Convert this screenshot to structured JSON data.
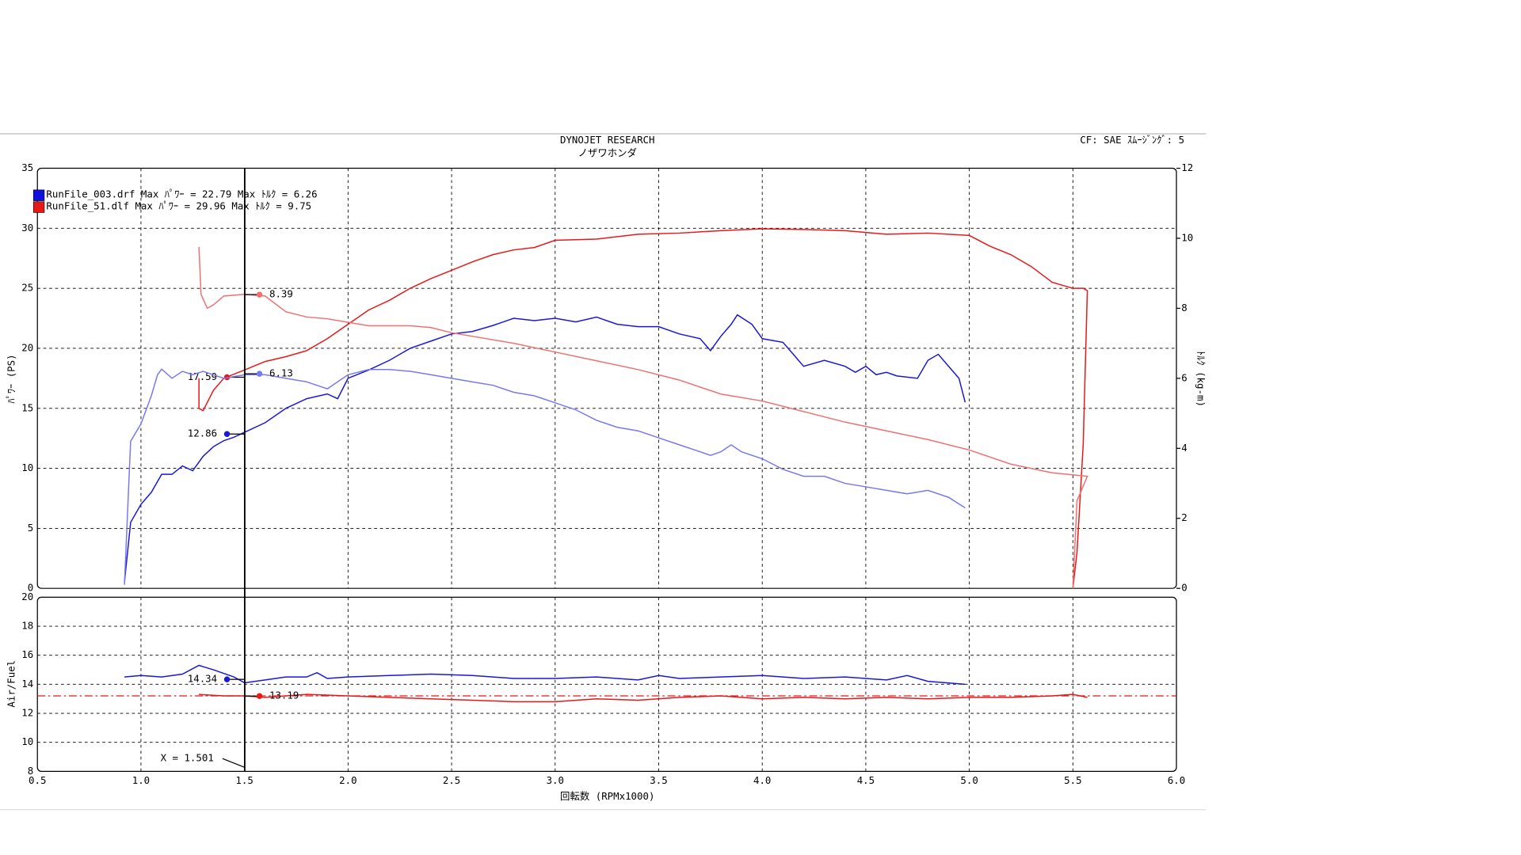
{
  "chart_data": [
    {
      "type": "line",
      "title": "DYNOJET  RESEARCH",
      "subtitle": "ノザワホンダ",
      "annotation": "CF: SAE  ｽﾑｰｼﾞﾝｸﾞ: 5",
      "y_label": "ﾊﾟﾜｰ (PS)",
      "y2_label": "ﾄﾙｸ (kg-m)",
      "ylim": [
        0,
        35
      ],
      "yticks": [
        0,
        5,
        10,
        15,
        20,
        25,
        30,
        35
      ],
      "y2lim": [
        0,
        12
      ],
      "y2ticks": [
        0,
        2,
        4,
        6,
        8,
        10,
        12
      ],
      "grid": true,
      "legend": [
        {
          "label": "RunFile_003.drf Max ﾊﾟﾜｰ = 22.79  Max ﾄﾙｸ = 6.26",
          "color": "#1010e0"
        },
        {
          "label": "RunFile_51.dlf Max ﾊﾟﾜｰ = 29.96  Max ﾄﾙｸ = 9.75",
          "color": "#e81818"
        }
      ],
      "series": [
        {
          "color": "#1818d8",
          "readout": 12.86,
          "x": [
            0.92,
            0.95,
            1.0,
            1.05,
            1.1,
            1.15,
            1.2,
            1.25,
            1.3,
            1.35,
            1.4,
            1.45,
            1.5,
            1.6,
            1.7,
            1.8,
            1.9,
            1.95,
            2.0,
            2.1,
            2.2,
            2.3,
            2.4,
            2.5,
            2.6,
            2.7,
            2.8,
            2.9,
            3.0,
            3.1,
            3.2,
            3.3,
            3.4,
            3.5,
            3.6,
            3.7,
            3.75,
            3.8,
            3.85,
            3.88,
            3.95,
            4.0,
            4.1,
            4.15,
            4.2,
            4.3,
            4.4,
            4.45,
            4.5,
            4.55,
            4.6,
            4.65,
            4.7,
            4.75,
            4.8,
            4.85,
            4.9,
            4.95,
            4.98
          ],
          "values": [
            0.5,
            5.5,
            7,
            8,
            9.5,
            9.5,
            10.2,
            9.8,
            11,
            11.8,
            12.3,
            12.6,
            13,
            13.8,
            15,
            15.8,
            16.2,
            15.8,
            17.5,
            18.2,
            19,
            20,
            20.6,
            21.2,
            21.4,
            21.9,
            22.5,
            22.3,
            22.5,
            22.2,
            22.6,
            22,
            21.8,
            21.8,
            21.2,
            20.8,
            19.8,
            21,
            22,
            22.79,
            22,
            20.8,
            20.5,
            19.5,
            18.5,
            19,
            18.5,
            18,
            18.5,
            17.8,
            18,
            17.7,
            17.6,
            17.5,
            19,
            19.5,
            18.5,
            17.5,
            15.5
          ]
        },
        {
          "color": "#e81818",
          "readout": 17.59,
          "x": [
            1.28,
            1.28,
            1.3,
            1.35,
            1.4,
            1.5,
            1.6,
            1.7,
            1.8,
            1.9,
            2.0,
            2.1,
            2.2,
            2.3,
            2.4,
            2.5,
            2.6,
            2.7,
            2.8,
            2.9,
            3.0,
            3.2,
            3.4,
            3.6,
            3.8,
            4.0,
            4.2,
            4.4,
            4.6,
            4.8,
            5.0,
            5.1,
            5.2,
            5.3,
            5.4,
            5.5,
            5.55,
            5.57,
            5.55,
            5.52,
            5.5
          ],
          "values": [
            17.5,
            15,
            14.8,
            16.5,
            17.5,
            18.2,
            18.9,
            19.3,
            19.8,
            20.8,
            22,
            23.2,
            24,
            25,
            25.8,
            26.5,
            27.2,
            27.8,
            28.2,
            28.4,
            29,
            29.1,
            29.5,
            29.6,
            29.8,
            29.96,
            29.9,
            29.8,
            29.5,
            29.6,
            29.4,
            28.5,
            27.8,
            26.8,
            25.5,
            25,
            25,
            24.8,
            12,
            3,
            0
          ]
        },
        {
          "color": "#7878f0",
          "axis": "y2",
          "readout": 6.13,
          "x": [
            0.92,
            0.95,
            1.0,
            1.05,
            1.08,
            1.1,
            1.15,
            1.2,
            1.25,
            1.3,
            1.4,
            1.5,
            1.6,
            1.7,
            1.8,
            1.9,
            2.0,
            2.1,
            2.2,
            2.3,
            2.4,
            2.5,
            2.6,
            2.7,
            2.8,
            2.9,
            3.0,
            3.1,
            3.2,
            3.3,
            3.4,
            3.5,
            3.6,
            3.7,
            3.75,
            3.8,
            3.85,
            3.9,
            4.0,
            4.1,
            4.2,
            4.3,
            4.4,
            4.5,
            4.6,
            4.7,
            4.8,
            4.9,
            4.98
          ],
          "values": [
            0.1,
            4.2,
            4.7,
            5.5,
            6.1,
            6.26,
            6.0,
            6.2,
            6.1,
            6.2,
            6.0,
            6.1,
            6.1,
            6.0,
            5.9,
            5.7,
            6.1,
            6.25,
            6.25,
            6.2,
            6.1,
            6.0,
            5.9,
            5.8,
            5.6,
            5.5,
            5.3,
            5.1,
            4.8,
            4.6,
            4.5,
            4.3,
            4.1,
            3.9,
            3.8,
            3.9,
            4.1,
            3.9,
            3.7,
            3.4,
            3.2,
            3.2,
            3.0,
            2.9,
            2.8,
            2.7,
            2.8,
            2.6,
            2.3
          ]
        },
        {
          "color": "#f07070",
          "axis": "y2",
          "readout": 8.39,
          "x": [
            1.28,
            1.29,
            1.32,
            1.35,
            1.4,
            1.5,
            1.6,
            1.7,
            1.8,
            1.9,
            2.0,
            2.1,
            2.2,
            2.3,
            2.4,
            2.5,
            2.6,
            2.8,
            3.0,
            3.2,
            3.4,
            3.6,
            3.8,
            4.0,
            4.2,
            4.4,
            4.6,
            4.8,
            5.0,
            5.2,
            5.4,
            5.57,
            5.52,
            5.5
          ],
          "values": [
            9.75,
            8.4,
            8.0,
            8.1,
            8.35,
            8.4,
            8.35,
            7.9,
            7.75,
            7.7,
            7.6,
            7.5,
            7.5,
            7.5,
            7.45,
            7.3,
            7.2,
            7.0,
            6.75,
            6.5,
            6.25,
            5.95,
            5.55,
            5.35,
            5.05,
            4.75,
            4.5,
            4.25,
            3.95,
            3.55,
            3.3,
            3.2,
            2.5,
            0
          ]
        }
      ]
    },
    {
      "type": "line",
      "y_label": "Air/Fuel",
      "x_label": "回転数 (RPMx1000)",
      "cursor_label": "X = 1.501",
      "cursor": 1.501,
      "xlim": [
        0.5,
        6.0
      ],
      "xticks": [
        {
          "value": 0.5,
          "label": "0.5"
        },
        {
          "value": 1.0,
          "label": "1.0"
        },
        {
          "value": 1.5,
          "label": "1.5"
        },
        {
          "value": 2.0,
          "label": "2.0"
        },
        {
          "value": 2.5,
          "label": "2.5"
        },
        {
          "value": 3.0,
          "label": "3.0"
        },
        {
          "value": 3.5,
          "label": "3.5"
        },
        {
          "value": 4.0,
          "label": "4.0"
        },
        {
          "value": 4.5,
          "label": "4.5"
        },
        {
          "value": 5.0,
          "label": "5.0"
        },
        {
          "value": 5.5,
          "label": "5.5"
        },
        {
          "value": 6.0,
          "label": "6.0"
        }
      ],
      "ylim": [
        8,
        20
      ],
      "yticks": [
        8,
        10,
        12,
        14,
        16,
        18,
        20
      ],
      "grid": true,
      "ref_line": 13.2,
      "ref_color": "#e81818",
      "series": [
        {
          "color": "#1818d8",
          "readout": 14.34,
          "x": [
            0.92,
            1.0,
            1.1,
            1.2,
            1.28,
            1.35,
            1.45,
            1.5,
            1.6,
            1.7,
            1.8,
            1.85,
            1.9,
            2.0,
            2.2,
            2.4,
            2.6,
            2.8,
            3.0,
            3.2,
            3.4,
            3.5,
            3.6,
            3.8,
            4.0,
            4.2,
            4.4,
            4.6,
            4.7,
            4.8,
            4.98
          ],
          "values": [
            14.5,
            14.6,
            14.5,
            14.7,
            15.3,
            15.0,
            14.5,
            14.1,
            14.3,
            14.5,
            14.5,
            14.8,
            14.4,
            14.5,
            14.6,
            14.7,
            14.6,
            14.4,
            14.4,
            14.5,
            14.3,
            14.6,
            14.4,
            14.5,
            14.6,
            14.4,
            14.5,
            14.3,
            14.6,
            14.2,
            14.0
          ]
        },
        {
          "color": "#e81818",
          "readout": 13.19,
          "x": [
            1.28,
            1.4,
            1.5,
            1.6,
            1.8,
            2.0,
            2.2,
            2.4,
            2.6,
            2.8,
            3.0,
            3.2,
            3.4,
            3.6,
            3.8,
            4.0,
            4.2,
            4.4,
            4.6,
            4.8,
            5.0,
            5.2,
            5.4,
            5.5,
            5.57
          ],
          "values": [
            13.3,
            13.2,
            13.2,
            13.1,
            13.3,
            13.2,
            13.1,
            13.0,
            12.9,
            12.8,
            12.8,
            13.0,
            12.9,
            13.1,
            13.2,
            13.0,
            13.1,
            13.0,
            13.1,
            13.0,
            13.1,
            13.1,
            13.2,
            13.3,
            13.1
          ]
        }
      ]
    }
  ]
}
